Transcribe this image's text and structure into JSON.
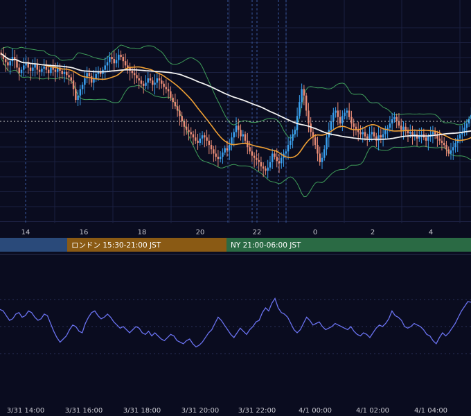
{
  "chart_data": [
    {
      "type": "candlestick",
      "overlays": [
        "bollinger-bands",
        "moving-average-orange",
        "moving-average-white"
      ],
      "x_ticks": [
        "14",
        "16",
        "18",
        "20",
        "22",
        "0",
        "2",
        "4"
      ],
      "sessions": [
        {
          "label": "",
          "color": "#2a4a7a"
        },
        {
          "label": "ロンドン 15:30-21:00 JST",
          "color": "#8a5a14"
        },
        {
          "label": "NY 21:00-06:00 JST",
          "color": "#2a6a44"
        }
      ],
      "candles_close": [
        0.62,
        0.58,
        0.55,
        0.52,
        0.56,
        0.6,
        0.57,
        0.5,
        0.45,
        0.48,
        0.52,
        0.55,
        0.5,
        0.47,
        0.5,
        0.53,
        0.48,
        0.46,
        0.49,
        0.51,
        0.48,
        0.45,
        0.5,
        0.48,
        0.46,
        0.5,
        0.47,
        0.44,
        0.46,
        0.43,
        0.41,
        0.38,
        0.3,
        0.2,
        0.24,
        0.3,
        0.34,
        0.4,
        0.45,
        0.42,
        0.36,
        0.4,
        0.44,
        0.46,
        0.44,
        0.48,
        0.52,
        0.55,
        0.6,
        0.58,
        0.54,
        0.57,
        0.62,
        0.6,
        0.56,
        0.52,
        0.5,
        0.47,
        0.45,
        0.43,
        0.4,
        0.38,
        0.35,
        0.33,
        0.36,
        0.4,
        0.38,
        0.34,
        0.36,
        0.4,
        0.38,
        0.35,
        0.32,
        0.3,
        0.28,
        0.22,
        0.18,
        0.14,
        0.1,
        0.05,
        0.0,
        -0.05,
        -0.08,
        -0.1,
        -0.12,
        -0.15,
        -0.18,
        -0.2,
        -0.16,
        -0.13,
        -0.15,
        -0.18,
        -0.22,
        -0.26,
        -0.3,
        -0.33,
        -0.35,
        -0.33,
        -0.29,
        -0.25,
        -0.27,
        -0.22,
        -0.15,
        -0.1,
        -0.04,
        -0.08,
        -0.14,
        -0.12,
        -0.18,
        -0.24,
        -0.28,
        -0.32,
        -0.34,
        -0.36,
        -0.38,
        -0.42,
        -0.44,
        -0.46,
        -0.43,
        -0.38,
        -0.3,
        -0.33,
        -0.37,
        -0.39,
        -0.34,
        -0.3,
        -0.28,
        -0.22,
        -0.18,
        -0.12,
        -0.08,
        0.05,
        0.18,
        0.3,
        0.24,
        0.1,
        -0.02,
        -0.1,
        -0.15,
        -0.22,
        -0.3,
        -0.38,
        -0.34,
        -0.26,
        -0.15,
        -0.08,
        0.0,
        0.08,
        0.1,
        0.04,
        -0.02,
        0.05,
        0.08,
        0.1,
        0.04,
        -0.02,
        -0.05,
        -0.08,
        -0.1,
        -0.12,
        -0.1,
        -0.14,
        -0.16,
        -0.12,
        -0.1,
        -0.14,
        -0.18,
        -0.13,
        -0.15,
        -0.12,
        -0.08,
        -0.06,
        -0.02,
        0.02,
        0.04,
        0.0,
        -0.04,
        -0.08,
        -0.05,
        -0.08,
        -0.11,
        -0.1,
        -0.14,
        -0.12,
        -0.16,
        -0.14,
        -0.12,
        -0.15,
        -0.18,
        -0.14,
        -0.12,
        -0.1,
        -0.12,
        -0.16,
        -0.18,
        -0.2,
        -0.22,
        -0.26,
        -0.3,
        -0.27,
        -0.24,
        -0.2,
        -0.16,
        -0.12,
        -0.1,
        -0.06,
        -0.02,
        0.02,
        0.06
      ],
      "oscillator": [
        0.55,
        0.5,
        0.35,
        0.2,
        0.25,
        0.4,
        0.45,
        0.3,
        0.35,
        0.5,
        0.45,
        0.3,
        0.2,
        0.25,
        0.4,
        0.35,
        0.1,
        -0.15,
        -0.35,
        -0.5,
        -0.4,
        -0.3,
        -0.1,
        0.05,
        0.0,
        -0.15,
        -0.2,
        0.1,
        0.3,
        0.45,
        0.5,
        0.35,
        0.25,
        0.3,
        0.4,
        0.3,
        0.15,
        0.05,
        -0.05,
        0.0,
        -0.1,
        -0.2,
        -0.1,
        0.0,
        -0.05,
        -0.2,
        -0.25,
        -0.15,
        -0.3,
        -0.2,
        -0.3,
        -0.4,
        -0.45,
        -0.35,
        -0.25,
        -0.3,
        -0.45,
        -0.5,
        -0.55,
        -0.45,
        -0.4,
        -0.55,
        -0.65,
        -0.6,
        -0.5,
        -0.35,
        -0.2,
        -0.1,
        0.1,
        0.3,
        0.2,
        0.05,
        -0.1,
        -0.25,
        -0.35,
        -0.2,
        -0.05,
        -0.15,
        -0.25,
        -0.1,
        0.0,
        0.15,
        0.2,
        0.45,
        0.6,
        0.5,
        0.75,
        0.9,
        0.6,
        0.45,
        0.4,
        0.3,
        0.1,
        -0.1,
        -0.2,
        -0.1,
        0.1,
        0.3,
        0.2,
        0.05,
        0.1,
        0.15,
        0.0,
        -0.1,
        -0.05,
        0.0,
        0.1,
        0.05,
        0.0,
        -0.05,
        -0.1,
        0.0,
        -0.15,
        -0.25,
        -0.3,
        -0.2,
        -0.25,
        -0.35,
        -0.2,
        -0.05,
        0.05,
        0.0,
        0.1,
        0.25,
        0.5,
        0.35,
        0.3,
        0.2,
        0.0,
        -0.05,
        0.0,
        0.1,
        0.05,
        0.0,
        -0.1,
        -0.25,
        -0.3,
        -0.45,
        -0.55,
        -0.35,
        -0.2,
        -0.3,
        -0.2,
        -0.05,
        0.1,
        0.3,
        0.5,
        0.65,
        0.8,
        0.78
      ]
    }
  ],
  "timeline": {
    "labels": [
      "3/31 14:00",
      "3/31 16:00",
      "3/31 18:00",
      "3/31 20:00",
      "3/31 22:00",
      "4/1 00:00",
      "4/1 02:00",
      "4/1 04:00"
    ]
  },
  "colors": {
    "background": "#0a0c1f",
    "candle_up": "#3aa0ef",
    "candle_down": "#e98c76",
    "bollinger": "#3f9e5a",
    "ma_orange": "#f0a034",
    "ma_white": "#f2f2f2",
    "oscillator": "#6a72f0",
    "grid": "#1b2040"
  }
}
